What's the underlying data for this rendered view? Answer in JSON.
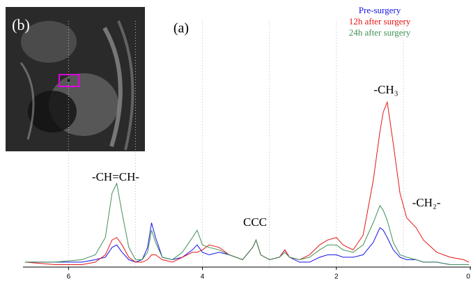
{
  "chart_data": {
    "type": "line",
    "inset_label": "(b)",
    "annotations": [
      "(a)",
      "-CH=CH-",
      "CCC",
      "-CH₃",
      "-CH₂-"
    ],
    "x": [
      6.65,
      6.2,
      5.8,
      5.6,
      5.45,
      5.35,
      5.28,
      5.2,
      5.1,
      5.0,
      4.9,
      4.82,
      4.76,
      4.7,
      4.6,
      4.45,
      4.3,
      4.15,
      4.08,
      4.0,
      3.9,
      3.75,
      3.6,
      3.4,
      3.25,
      3.2,
      3.13,
      3.0,
      2.85,
      2.77,
      2.7,
      2.55,
      2.4,
      2.25,
      2.13,
      2.0,
      1.9,
      1.75,
      1.6,
      1.45,
      1.35,
      1.3,
      1.24,
      1.15,
      1.05,
      0.95,
      0.81,
      0.7,
      0.5,
      0.3,
      0.1,
      0.02
    ],
    "series": [
      {
        "name": "Pre-surgery",
        "color": "#1414e6",
        "values": [
          2,
          2,
          2,
          3,
          4,
          8,
          9,
          6,
          3,
          2,
          3,
          8,
          18,
          12,
          4,
          3,
          4,
          7,
          9,
          6,
          5,
          6,
          5,
          3,
          8,
          11,
          5,
          3,
          4,
          7,
          4,
          2,
          2,
          4,
          5,
          5,
          4,
          4,
          5,
          10,
          16,
          15,
          12,
          7,
          4,
          3,
          3,
          2,
          2,
          1,
          1,
          1
        ]
      },
      {
        "name": "12h after surgery",
        "color": "#e81414",
        "values": [
          2,
          1,
          1,
          2,
          5,
          11,
          12,
          9,
          4,
          2,
          2,
          3,
          5,
          5,
          3,
          2,
          4,
          6,
          6,
          7,
          9,
          8,
          5,
          3,
          8,
          11,
          5,
          3,
          4,
          7,
          4,
          3,
          5,
          9,
          11,
          12,
          9,
          7,
          13,
          35,
          55,
          63,
          67,
          50,
          30,
          20,
          16,
          11,
          6,
          4,
          3,
          2
        ]
      },
      {
        "name": "24h after surgery",
        "color": "#3f8f55",
        "values": [
          2,
          2,
          3,
          5,
          12,
          30,
          34,
          22,
          8,
          3,
          3,
          6,
          15,
          10,
          4,
          3,
          6,
          12,
          15,
          9,
          8,
          7,
          5,
          3,
          8,
          11,
          5,
          3,
          4,
          6,
          4,
          3,
          4,
          7,
          9,
          9,
          7,
          6,
          9,
          18,
          25,
          23,
          19,
          10,
          5,
          4,
          3,
          2,
          2,
          1,
          1,
          1
        ]
      }
    ],
    "xlim": [
      6.68,
      0
    ],
    "xticks": [
      6,
      4,
      2,
      0
    ],
    "grid_x": [
      6,
      5,
      4,
      3,
      2,
      1
    ],
    "ylim": [
      0,
      100
    ],
    "grid": true
  }
}
